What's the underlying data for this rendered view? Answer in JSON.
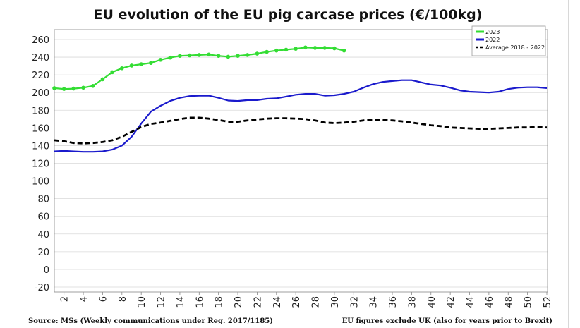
{
  "chart_data": {
    "type": "line",
    "title": "EU evolution of the EU pig carcase prices (€/100kg)",
    "xlabel": "",
    "ylabel": "",
    "xlim": [
      1,
      52
    ],
    "ylim": [
      -20,
      260
    ],
    "yticks": [
      260,
      240,
      220,
      200,
      180,
      160,
      140,
      120,
      100,
      80,
      60,
      40,
      20,
      0,
      -20
    ],
    "xticks": [
      2,
      4,
      6,
      8,
      10,
      12,
      14,
      16,
      18,
      20,
      22,
      24,
      26,
      28,
      30,
      32,
      34,
      36,
      38,
      40,
      42,
      44,
      46,
      48,
      50,
      52
    ],
    "grid": "horizontal",
    "legend_position": "top-right",
    "series": [
      {
        "name": "2023",
        "color": "#33dd33",
        "style": "solid-markers",
        "x": [
          1,
          2,
          3,
          4,
          5,
          6,
          7,
          8,
          9,
          10,
          11,
          12,
          13,
          14,
          15,
          16,
          17,
          18,
          19,
          20,
          21,
          22,
          23,
          24,
          25,
          26,
          27,
          28,
          29,
          30,
          31
        ],
        "values": [
          205,
          204,
          204.5,
          205.5,
          207.5,
          215,
          223,
          227.5,
          230.5,
          232,
          233.5,
          237,
          239.5,
          241.5,
          242,
          242.5,
          243,
          241.5,
          240.5,
          241.5,
          242.5,
          244,
          246,
          247.5,
          248.5,
          249.5,
          251,
          250.5,
          250.5,
          250,
          247.5
        ]
      },
      {
        "name": "2022",
        "color": "#1a1acc",
        "style": "solid",
        "x": [
          1,
          2,
          3,
          4,
          5,
          6,
          7,
          8,
          9,
          10,
          11,
          12,
          13,
          14,
          15,
          16,
          17,
          18,
          19,
          20,
          21,
          22,
          23,
          24,
          25,
          26,
          27,
          28,
          29,
          30,
          31,
          32,
          33,
          34,
          35,
          36,
          37,
          38,
          39,
          40,
          41,
          42,
          43,
          44,
          45,
          46,
          47,
          48,
          49,
          50,
          51,
          52
        ],
        "values": [
          133.5,
          134,
          133.5,
          133,
          133,
          133.5,
          135.5,
          140,
          150,
          165,
          178.5,
          185,
          190.5,
          194,
          196,
          196.5,
          196.5,
          194,
          191,
          190.5,
          191.5,
          191.5,
          193,
          193.5,
          195.5,
          197.5,
          198.5,
          198.5,
          196.5,
          197,
          198.5,
          201,
          205.5,
          209.5,
          212,
          213,
          214,
          214,
          211.5,
          209,
          208,
          205.5,
          202.5,
          201,
          200.5,
          200,
          201,
          204,
          205.5,
          206,
          206,
          205
        ]
      },
      {
        "name": "Average 2018 - 2022",
        "color": "#000000",
        "style": "dashed",
        "x": [
          1,
          2,
          3,
          4,
          5,
          6,
          7,
          8,
          9,
          10,
          11,
          12,
          13,
          14,
          15,
          16,
          17,
          18,
          19,
          20,
          21,
          22,
          23,
          24,
          25,
          26,
          27,
          28,
          29,
          30,
          31,
          32,
          33,
          34,
          35,
          36,
          37,
          38,
          39,
          40,
          41,
          42,
          43,
          44,
          45,
          46,
          47,
          48,
          49,
          50,
          51,
          52
        ],
        "values": [
          146,
          145,
          143,
          142.5,
          143,
          144,
          146,
          150,
          155.5,
          161,
          164.5,
          166,
          168,
          170,
          171.5,
          171.5,
          170.5,
          169,
          167,
          167,
          168.5,
          169.5,
          170.5,
          171,
          171,
          170.5,
          170,
          168.5,
          166,
          165.5,
          166,
          167,
          168.5,
          169,
          169,
          168.5,
          167.5,
          166,
          164.5,
          163,
          162,
          160.5,
          160,
          159.5,
          159,
          159,
          159.5,
          160,
          160.5,
          160.5,
          161,
          160.5
        ]
      }
    ]
  },
  "footer": {
    "source": "Source: MSs (Weekly communications under Reg. 2017/1185)",
    "note": "EU figures exclude UK (also for years prior to Brexit)"
  }
}
